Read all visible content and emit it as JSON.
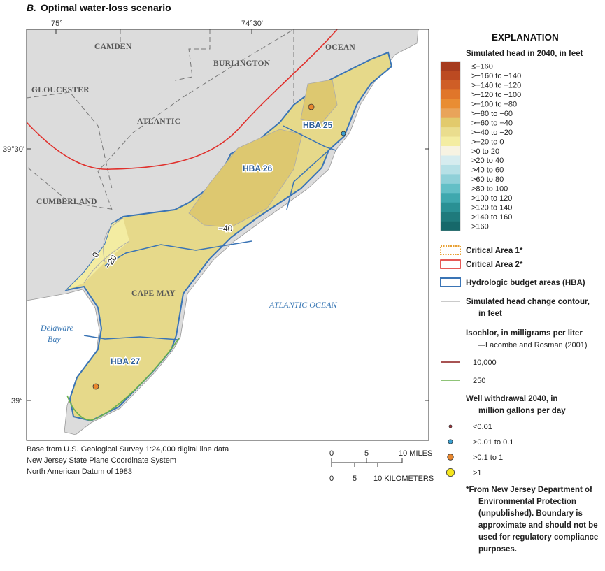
{
  "title": {
    "label": "B.",
    "text": "Optimal water-loss scenario"
  },
  "map": {
    "graticule": [
      "75°",
      "74°30'",
      "39°30'",
      "39°"
    ],
    "counties": [
      "CAMDEN",
      "BURLINGTON",
      "OCEAN",
      "GLOUCESTER",
      "ATLANTIC",
      "CUMBERLAND",
      "CAPE MAY"
    ],
    "water": [
      "ATLANTIC OCEAN",
      "Delaware",
      "Bay"
    ],
    "hba_labels": [
      "HBA 25",
      "HBA 26",
      "HBA 27"
    ],
    "contour_labels": [
      "−40",
      "−20",
      "0"
    ],
    "credits": [
      "Base from U.S. Geological Survey 1:24,000 digital line data",
      "New Jersey State Plane Coordinate System",
      "North American Datum of 1983"
    ],
    "scale": {
      "miles": [
        "0",
        "5",
        "10 MILES"
      ],
      "km": [
        "0",
        "5",
        "10 KILOMETERS"
      ]
    }
  },
  "legend": {
    "title": "EXPLANATION",
    "head_title": "Simulated head in 2040, in feet",
    "classes": [
      {
        "label": "≤−160",
        "color": "#a63b1e"
      },
      {
        "label": ">−160 to −140",
        "color": "#bc4a22"
      },
      {
        "label": ">−140 to −120",
        "color": "#cf5e26"
      },
      {
        "label": ">−120 to −100",
        "color": "#e0762a"
      },
      {
        "label": ">−100 to −80",
        "color": "#e98d33"
      },
      {
        "label": ">−80 to −60",
        "color": "#e9a45a"
      },
      {
        "label": ">−60 to −40",
        "color": "#e2ca6c"
      },
      {
        "label": ">−40 to −20",
        "color": "#eadd8e"
      },
      {
        "label": ">−20 to 0",
        "color": "#f4eda2"
      },
      {
        "label": ">0 to 20",
        "color": "#f7f3e2"
      },
      {
        "label": ">20 to 40",
        "color": "#d6ecef"
      },
      {
        "label": ">40 to 60",
        "color": "#b6e0e6"
      },
      {
        "label": ">60 to 80",
        "color": "#8fd0d8"
      },
      {
        "label": ">80 to 100",
        "color": "#63bfc6"
      },
      {
        "label": ">100 to 120",
        "color": "#3fa8ae"
      },
      {
        "label": ">120 to 140",
        "color": "#2a9094"
      },
      {
        "label": ">140 to 160",
        "color": "#1f7a7c"
      },
      {
        "label": ">160",
        "color": "#16686a"
      }
    ],
    "critical_area_1": "Critical Area 1*",
    "critical_area_2": "Critical Area 2*",
    "hba": "Hydrologic budget areas (HBA)",
    "contour": [
      "Simulated head change contour,",
      "in feet"
    ],
    "isochlor_title": [
      "Isochlor, in milligrams per liter",
      "—Lacombe and Rosman (2001)"
    ],
    "isochlors": [
      {
        "label": "10,000",
        "color": "#8b1a1a"
      },
      {
        "label": "250",
        "color": "#6ab04c"
      }
    ],
    "wells_title": [
      "Well withdrawal 2040, in",
      "million gallons per day"
    ],
    "wells": [
      {
        "label": "<0.01",
        "color": "#b0303a"
      },
      {
        "label": ">0.01 to 0.1",
        "color": "#3a9fd0"
      },
      {
        "label": ">0.1 to 1",
        "color": "#e8872e"
      },
      {
        "label": ">1",
        "color": "#f5e51c"
      }
    ],
    "footnote": [
      "*From New Jersey Department of",
      "Environmental Protection",
      "(unpublished). Boundary is",
      "approximate and should not be",
      "used for regulatory compliance",
      "purposes."
    ]
  }
}
